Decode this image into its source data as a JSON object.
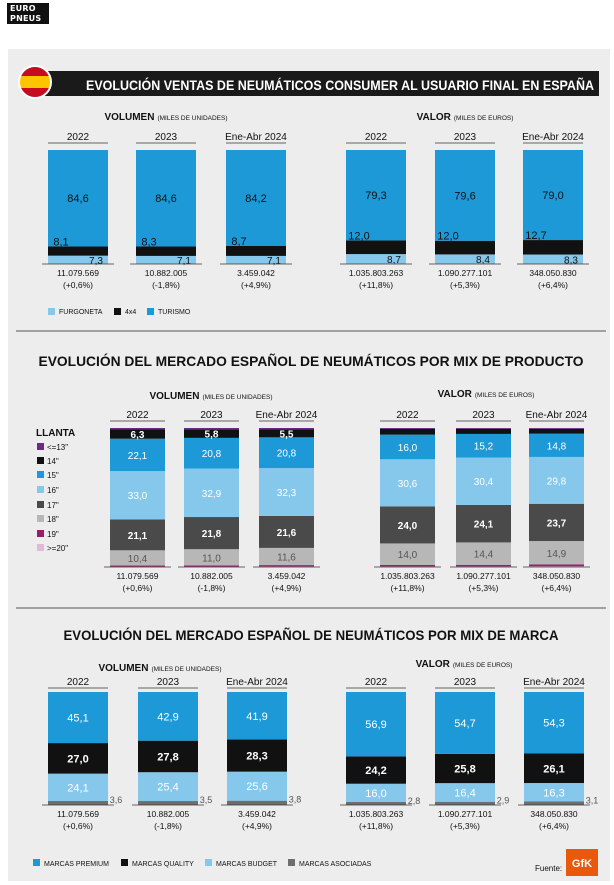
{
  "brand": {
    "line1": "EURO",
    "line2": "PNEUS"
  },
  "section1": {
    "title": "EVOLUCIÓN VENTAS DE NEUMÁTICOS CONSUMER AL USUARIO FINAL EN ESPAÑA",
    "flag_icon": "spain-flag-icon",
    "volumen_label": "VOLUMEN",
    "volumen_units": "(MILES DE UNIDADES)",
    "valor_label": "VALOR",
    "valor_units": "(MILES DE EUROS)",
    "legend": [
      {
        "label": "FURGONETA",
        "color": "#86c8ec"
      },
      {
        "label": "4x4",
        "color": "#111111"
      },
      {
        "label": "TURISMO",
        "color": "#1d99d8"
      }
    ]
  },
  "section2": {
    "title": "EVOLUCIÓN DEL MERCADO ESPAÑOL DE NEUMÁTICOS POR MIX DE PRODUCTO",
    "volumen_label": "VOLUMEN",
    "volumen_units": "(MILES DE UNIDADES)",
    "valor_label": "VALOR",
    "valor_units": "(MILES DE EUROS)",
    "legend_title": "LLANTA",
    "legend": [
      {
        "label": "<=13\"",
        "color": "#6a2a86"
      },
      {
        "label": "14\"",
        "color": "#111111"
      },
      {
        "label": "15\"",
        "color": "#1d99d8"
      },
      {
        "label": "16\"",
        "color": "#86c8ec"
      },
      {
        "label": "17\"",
        "color": "#4a4a4a"
      },
      {
        "label": "18\"",
        "color": "#b7b7b7"
      },
      {
        "label": "19\"",
        "color": "#9e1b6a"
      },
      {
        "label": ">=20\"",
        "color": "#e2b9d6"
      }
    ]
  },
  "section3": {
    "title": "EVOLUCIÓN DEL MERCADO ESPAÑOL DE NEUMÁTICOS POR MIX DE MARCA",
    "volumen_label": "VOLUMEN",
    "volumen_units": "(MILES DE UNIDADES)",
    "valor_label": "VALOR",
    "valor_units": "(MILES DE EUROS)",
    "legend": [
      {
        "label": "MARCAS PREMIUM",
        "color": "#1d99d8"
      },
      {
        "label": "MARCAS QUALITY",
        "color": "#111111"
      },
      {
        "label": "MARCAS BUDGET",
        "color": "#86c8ec"
      },
      {
        "label": "MARCAS ASOCIADAS",
        "color": "#6e6e6e"
      }
    ]
  },
  "footer": {
    "source_label": "Fuente:",
    "source_logo_text": "GfK",
    "logo_color": "#e8590c"
  },
  "colors": {
    "turismo": "#1d99d8",
    "furgoneta": "#86c8ec",
    "dark": "#111111",
    "title_bar": "#1a1a1a",
    "panel": "#ededed"
  },
  "chart_data": [
    {
      "type": "bar",
      "stacked": true,
      "panel": "section1-volumen",
      "categories": [
        "2022",
        "2023",
        "Ene-Abr 2024"
      ],
      "totals": [
        "11.079.569",
        "10.882.005",
        "3.459.042"
      ],
      "changes": [
        "(+0,6%)",
        "(-1,8%)",
        "(+4,9%)"
      ],
      "series": [
        {
          "name": "FURGONETA",
          "values": [
            7.3,
            7.1,
            7.1
          ]
        },
        {
          "name": "4x4",
          "values": [
            8.1,
            8.3,
            8.7
          ]
        },
        {
          "name": "TURISMO",
          "values": [
            84.6,
            84.6,
            84.2
          ]
        }
      ]
    },
    {
      "type": "bar",
      "stacked": true,
      "panel": "section1-valor",
      "categories": [
        "2022",
        "2023",
        "Ene-Abr 2024"
      ],
      "totals": [
        "1.035.803.263",
        "1.090.277.101",
        "348.050.830"
      ],
      "changes": [
        "(+11,8%)",
        "(+5,3%)",
        "(+6,4%)"
      ],
      "series": [
        {
          "name": "FURGONETA",
          "values": [
            8.7,
            8.4,
            8.3
          ]
        },
        {
          "name": "4x4",
          "values": [
            12.0,
            12.0,
            12.7
          ]
        },
        {
          "name": "TURISMO",
          "values": [
            79.3,
            79.6,
            79.0
          ]
        }
      ]
    },
    {
      "type": "bar",
      "stacked": true,
      "panel": "section2-volumen",
      "categories": [
        "2022",
        "2023",
        "Ene-Abr 2024"
      ],
      "totals": [
        "11.079.569",
        "10.882.005",
        "3.459.042"
      ],
      "changes": [
        "(+0,6%)",
        "(-1,8%)",
        "(+4,9%)"
      ],
      "series": [
        {
          "name": ">=20\"",
          "values": [
            0.3,
            0.3,
            0.4
          ]
        },
        {
          "name": "19\"",
          "values": [
            0.7,
            0.8,
            0.9
          ]
        },
        {
          "name": "18\"",
          "values": [
            10.4,
            11.0,
            11.6
          ]
        },
        {
          "name": "17\"",
          "values": [
            21.1,
            21.8,
            21.6
          ]
        },
        {
          "name": "16\"",
          "values": [
            33.0,
            32.9,
            32.3
          ]
        },
        {
          "name": "15\"",
          "values": [
            22.1,
            20.8,
            20.8
          ]
        },
        {
          "name": "14\"",
          "values": [
            6.3,
            5.8,
            5.5
          ]
        },
        {
          "name": "<=13\"",
          "values": [
            1.0,
            0.9,
            0.8
          ]
        }
      ]
    },
    {
      "type": "bar",
      "stacked": true,
      "panel": "section2-valor",
      "categories": [
        "2022",
        "2023",
        "Ene-Abr 2024"
      ],
      "totals": [
        "1.035.803.263",
        "1.090.277.101",
        "348.050.830"
      ],
      "changes": [
        "(+11,8%)",
        "(+5,3%)",
        "(+6,4%)"
      ],
      "series": [
        {
          "name": ">=20\"",
          "values": [
            0.4,
            0.4,
            0.5
          ]
        },
        {
          "name": "19\"",
          "values": [
            0.9,
            1.0,
            1.1
          ]
        },
        {
          "name": "18\"",
          "values": [
            14.0,
            14.4,
            14.9
          ]
        },
        {
          "name": "17\"",
          "values": [
            24.0,
            24.1,
            23.7
          ]
        },
        {
          "name": "16\"",
          "values": [
            30.6,
            30.4,
            29.8
          ]
        },
        {
          "name": "15\"",
          "values": [
            16.0,
            15.2,
            14.8
          ]
        },
        {
          "name": "14\"",
          "values": [
            3.7,
            3.3,
            3.1
          ]
        },
        {
          "name": "<=13\"",
          "values": [
            0.6,
            0.5,
            0.5
          ]
        }
      ]
    },
    {
      "type": "bar",
      "stacked": true,
      "panel": "section3-volumen",
      "categories": [
        "2022",
        "2023",
        "Ene-Abr 2024"
      ],
      "totals": [
        "11.079.569",
        "10.882.005",
        "3.459.042"
      ],
      "changes": [
        "(+0,6%)",
        "(-1,8%)",
        "(+4,9%)"
      ],
      "series": [
        {
          "name": "MARCAS ASOCIADAS",
          "values": [
            3.6,
            3.5,
            3.8
          ]
        },
        {
          "name": "MARCAS BUDGET",
          "values": [
            24.1,
            25.4,
            25.6
          ]
        },
        {
          "name": "MARCAS QUALITY",
          "values": [
            27.0,
            27.8,
            28.3
          ]
        },
        {
          "name": "MARCAS PREMIUM",
          "values": [
            45.1,
            42.9,
            41.9
          ]
        }
      ]
    },
    {
      "type": "bar",
      "stacked": true,
      "panel": "section3-valor",
      "categories": [
        "2022",
        "2023",
        "Ene-Abr 2024"
      ],
      "totals": [
        "1.035.803.263",
        "1.090.277.101",
        "348.050.830"
      ],
      "changes": [
        "(+11,8%)",
        "(+5,3%)",
        "(+6,4%)"
      ],
      "series": [
        {
          "name": "MARCAS ASOCIADAS",
          "values": [
            2.8,
            2.9,
            3.1
          ]
        },
        {
          "name": "MARCAS BUDGET",
          "values": [
            16.0,
            16.4,
            16.3
          ]
        },
        {
          "name": "MARCAS QUALITY",
          "values": [
            24.2,
            25.8,
            26.1
          ]
        },
        {
          "name": "MARCAS PREMIUM",
          "values": [
            56.9,
            54.7,
            54.3
          ]
        }
      ]
    }
  ]
}
